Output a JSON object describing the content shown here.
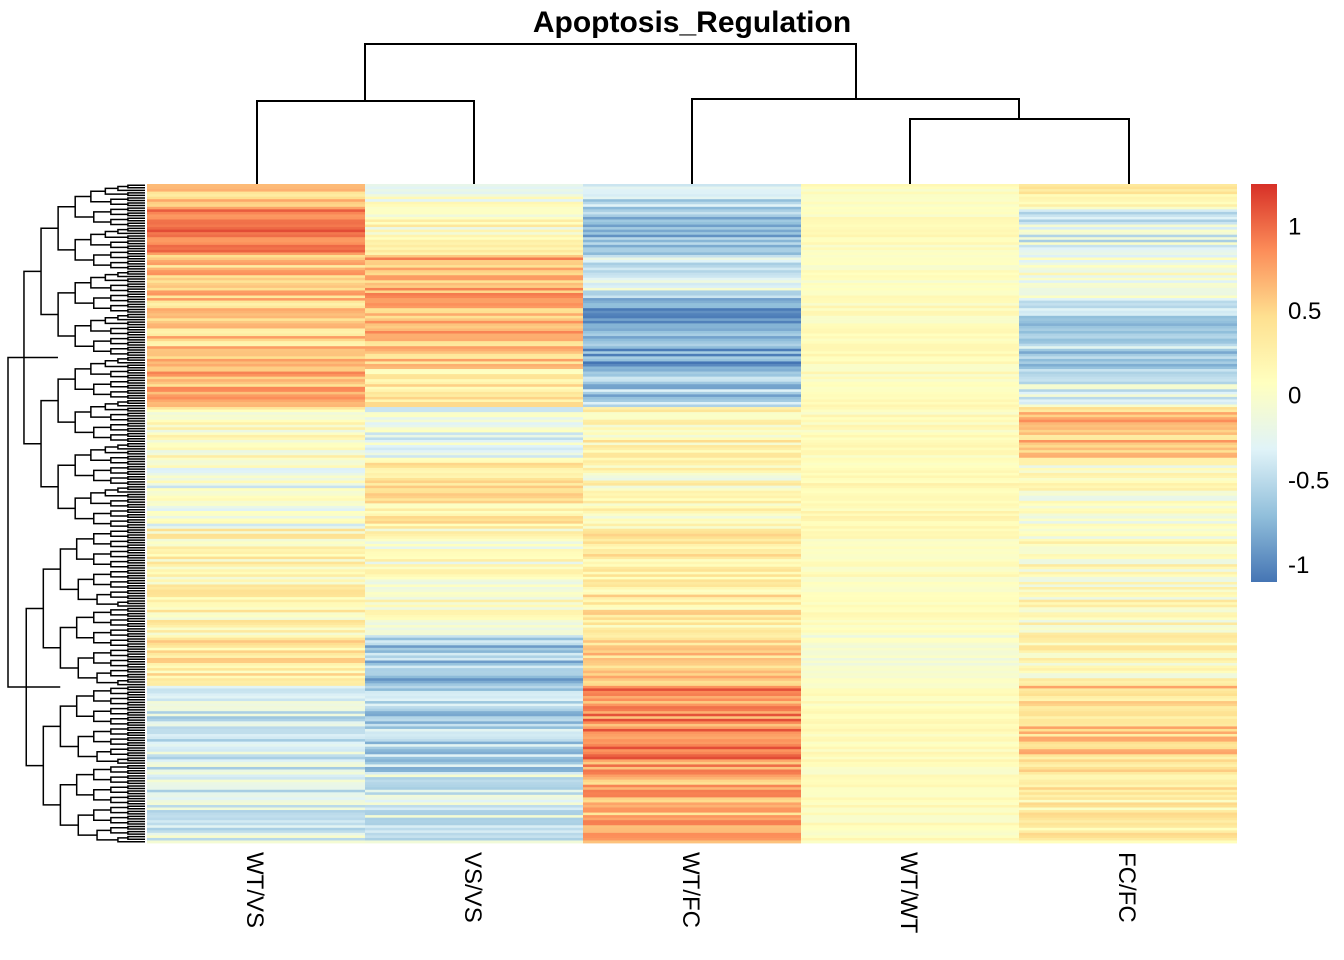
{
  "chart_data": {
    "type": "heatmap",
    "title": "Apoptosis_Regulation",
    "xlabel": "",
    "ylabel": "",
    "columns": [
      "WT/VS",
      "VS/VS",
      "WT/FC",
      "WT/WT",
      "FC/FC"
    ],
    "row_count": 260,
    "color_scale": {
      "min": -1.1,
      "max": 1.25,
      "ticks": [
        1,
        0.5,
        0,
        -0.5,
        -1
      ],
      "tick_labels": [
        "1",
        "0.5",
        "0",
        "-0.5",
        "-1"
      ],
      "colors": [
        "#4575b4",
        "#91bfdb",
        "#e0f3f8",
        "#ffffbf",
        "#fee090",
        "#fc8d59",
        "#d73027"
      ]
    },
    "column_dendrogram": "((WT/VS,VS/VS),(WT/FC,(WT/WT,FC/FC)))",
    "row_dendrogram": "hierarchical clustering of rows (two main clusters)",
    "row_blocks": [
      {
        "rows": [
          0,
          9
        ],
        "values": [
          0.55,
          -0.1,
          -0.5,
          0.05,
          0.25
        ]
      },
      {
        "rows": [
          10,
          27
        ],
        "values": [
          0.95,
          0.1,
          -0.7,
          0.1,
          -0.3
        ]
      },
      {
        "rows": [
          28,
          44
        ],
        "values": [
          0.55,
          0.65,
          -0.3,
          0.05,
          -0.1
        ]
      },
      {
        "rows": [
          45,
          72
        ],
        "values": [
          0.5,
          0.6,
          -0.85,
          0.1,
          -0.55
        ]
      },
      {
        "rows": [
          73,
          87
        ],
        "values": [
          0.7,
          0.3,
          -0.6,
          0.1,
          -0.3
        ]
      },
      {
        "rows": [
          88,
          107
        ],
        "values": [
          0.1,
          -0.2,
          0.2,
          0.1,
          0.6
        ]
      },
      {
        "rows": [
          108,
          135
        ],
        "values": [
          -0.15,
          0.3,
          0.1,
          0.15,
          0.0
        ]
      },
      {
        "rows": [
          136,
          177
        ],
        "values": [
          0.2,
          0.05,
          0.3,
          0.1,
          0.1
        ]
      },
      {
        "rows": [
          178,
          197
        ],
        "values": [
          0.3,
          -0.65,
          0.55,
          -0.05,
          0.15
        ]
      },
      {
        "rows": [
          198,
          232
        ],
        "values": [
          -0.35,
          -0.55,
          0.85,
          0.1,
          0.5
        ]
      },
      {
        "rows": [
          233,
          259
        ],
        "values": [
          -0.3,
          -0.3,
          0.65,
          0.1,
          0.3
        ]
      }
    ]
  }
}
